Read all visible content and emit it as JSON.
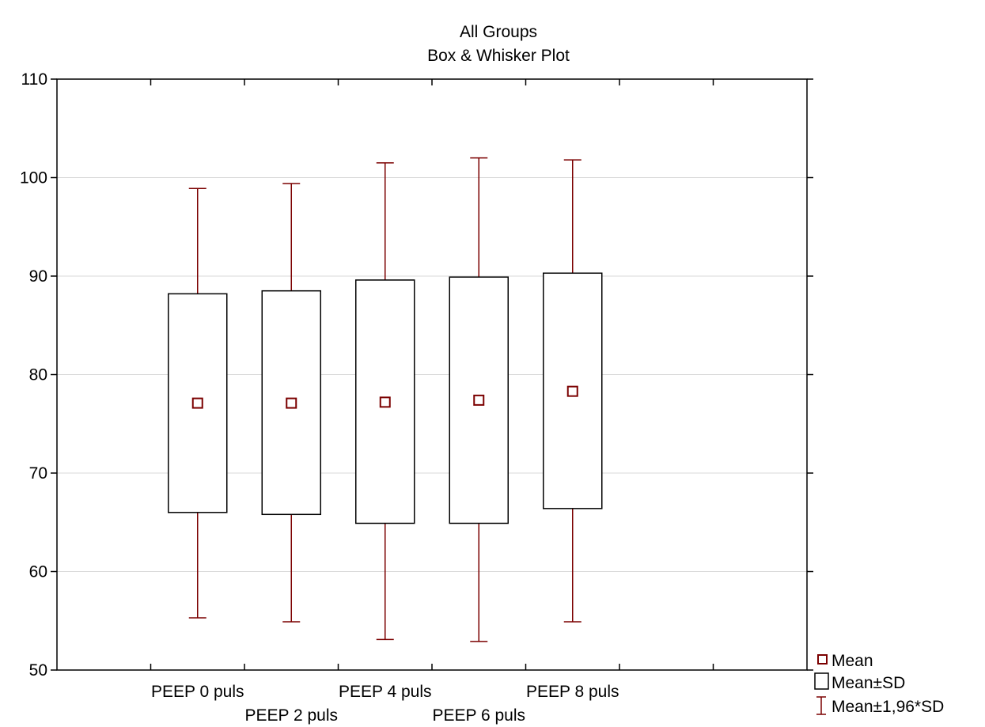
{
  "chart_data": {
    "type": "box",
    "title": "All Groups",
    "subtitle": "Box & Whisker Plot",
    "xlabel": "",
    "ylabel": "",
    "ylim": [
      50,
      110
    ],
    "yticks": [
      50,
      60,
      70,
      80,
      90,
      100,
      110
    ],
    "grid": true,
    "legend_position": "bottom-right",
    "categories": [
      "PEEP 0 puls",
      "PEEP 2 puls",
      "PEEP 4 puls",
      "PEEP 6 puls",
      "PEEP 8 puls"
    ],
    "series": [
      {
        "mean": [
          77.1,
          77.1,
          77.2,
          77.4,
          78.3
        ],
        "mean_plus_sd": [
          88.2,
          88.5,
          89.6,
          89.9,
          90.3
        ],
        "mean_minus_sd": [
          66.0,
          65.8,
          64.9,
          64.9,
          66.4
        ],
        "mean_plus_1_96_sd": [
          98.9,
          99.4,
          101.5,
          102.0,
          101.8
        ],
        "mean_minus_1_96_sd": [
          55.3,
          54.9,
          53.1,
          52.9,
          54.9
        ]
      }
    ],
    "legend": [
      {
        "label": "Mean",
        "symbol": "square-marker"
      },
      {
        "label": "Mean±SD",
        "symbol": "box"
      },
      {
        "label": "Mean±1,96*SD",
        "symbol": "whisker"
      }
    ],
    "colors": {
      "marks": "#7b0000",
      "grid": "#d8d8d8",
      "axis": "#000000"
    }
  }
}
